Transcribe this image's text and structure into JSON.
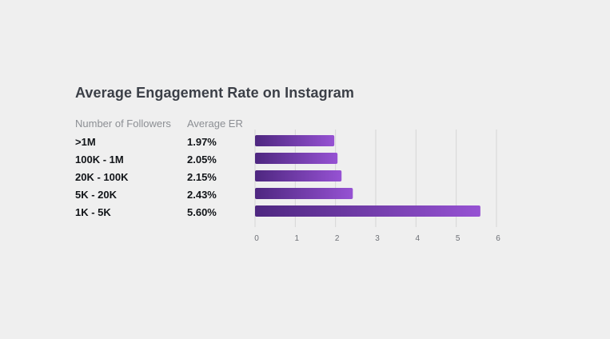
{
  "chart_data": {
    "type": "bar",
    "orientation": "horizontal",
    "title": "Average Engagement Rate on Instagram",
    "column_headers": {
      "followers": "Number of Followers",
      "er": "Average ER"
    },
    "categories": [
      ">1M",
      "100K - 1M",
      "20K - 100K",
      "5K - 20K",
      "1K - 5K"
    ],
    "values": [
      1.97,
      2.05,
      2.15,
      2.43,
      5.6
    ],
    "value_labels": [
      "1.97%",
      "2.05%",
      "2.15%",
      "2.43%",
      "5.60%"
    ],
    "xlim": [
      0,
      6
    ],
    "xticks": [
      "0",
      "1",
      "2",
      "3",
      "4",
      "5",
      "6"
    ],
    "grid": true,
    "bar_gradient": [
      "#4e2780",
      "#9652d3"
    ],
    "xlabel": "",
    "ylabel": ""
  }
}
